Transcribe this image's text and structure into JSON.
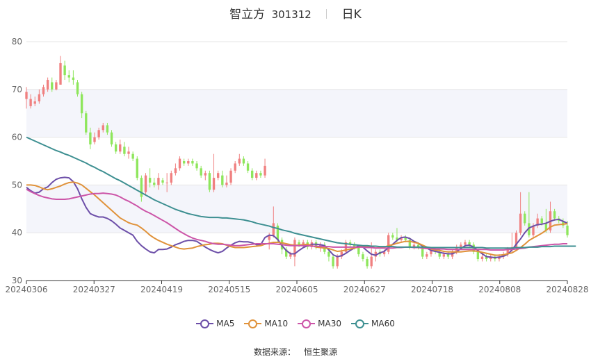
{
  "header": {
    "name": "智立方",
    "code": "301312",
    "period": "日K"
  },
  "source": {
    "label": "数据来源：",
    "value": "恒生聚源"
  },
  "chart_data": {
    "type": "candlestick",
    "ylim": [
      30,
      80
    ],
    "y_ticks": [
      30,
      40,
      50,
      60,
      70,
      80
    ],
    "x_ticks": [
      "20240306",
      "20240327",
      "20240419",
      "20240515",
      "20240605",
      "20240627",
      "20240718",
      "20240808",
      "20240828"
    ],
    "grid": "horizontal bands",
    "legend_position": "bottom",
    "colors": {
      "up": "#f08080",
      "down": "#8ee65c",
      "band": "#f4f5fb"
    },
    "candles_ohlc": [
      [
        68,
        69.5,
        66,
        70.5
      ],
      [
        66.5,
        68,
        66,
        69
      ],
      [
        67,
        67.5,
        66.5,
        68.5
      ],
      [
        67.5,
        69,
        67,
        70
      ],
      [
        69,
        70.5,
        68.5,
        71
      ],
      [
        70,
        72,
        69.5,
        72.5
      ],
      [
        71.5,
        70,
        69.5,
        72.5
      ],
      [
        70,
        71.5,
        69.8,
        72
      ],
      [
        71,
        75.5,
        71,
        77
      ],
      [
        75,
        73,
        72,
        76
      ],
      [
        73,
        72.5,
        71.5,
        74
      ],
      [
        72.5,
        72,
        71,
        74
      ],
      [
        71.5,
        69,
        68.5,
        72
      ],
      [
        69,
        65,
        64,
        69.5
      ],
      [
        65,
        61,
        60.5,
        65.5
      ],
      [
        61,
        58.5,
        57.5,
        62
      ],
      [
        59,
        60,
        58.5,
        61
      ],
      [
        60,
        61.5,
        59.5,
        62
      ],
      [
        61.5,
        62.5,
        61,
        63
      ],
      [
        62.5,
        61,
        60.5,
        63
      ],
      [
        61,
        58.5,
        58,
        61.5
      ],
      [
        58.5,
        57,
        56.5,
        59
      ],
      [
        57,
        58.5,
        56.5,
        59.5
      ],
      [
        58,
        56.5,
        56,
        59
      ],
      [
        56.5,
        57,
        55.5,
        58
      ],
      [
        56.5,
        55.5,
        55,
        57
      ],
      [
        55.5,
        51.5,
        51,
        56
      ],
      [
        51.5,
        47.5,
        46.5,
        52
      ],
      [
        48.5,
        52,
        48,
        52.5
      ],
      [
        51.5,
        50.5,
        49.5,
        53.5
      ],
      [
        50.5,
        50,
        49.5,
        51.5
      ],
      [
        50,
        51.5,
        49,
        52.5
      ],
      [
        51,
        50.5,
        50,
        51.5
      ],
      [
        50.5,
        50.5,
        48.5,
        52.5
      ],
      [
        50.5,
        52.5,
        50,
        53
      ],
      [
        52.5,
        53.5,
        52,
        54.5
      ],
      [
        53.5,
        55.5,
        53,
        56
      ],
      [
        55,
        54.5,
        54,
        55.5
      ],
      [
        54.5,
        55,
        54,
        55.5
      ],
      [
        55,
        54.5,
        54,
        55.5
      ],
      [
        54.5,
        53.5,
        53,
        55
      ],
      [
        53.5,
        52,
        51.5,
        54
      ],
      [
        52,
        52.5,
        51,
        53
      ],
      [
        52.5,
        49,
        48.5,
        53
      ],
      [
        49,
        51.5,
        48.5,
        56.5
      ],
      [
        51.5,
        52.5,
        51,
        53
      ],
      [
        52,
        50,
        49.5,
        53
      ],
      [
        50,
        50.5,
        49.5,
        52
      ],
      [
        50.5,
        53,
        50,
        53.5
      ],
      [
        53,
        54.5,
        52.5,
        55
      ],
      [
        54.5,
        55.5,
        54,
        56.5
      ],
      [
        55.5,
        54.5,
        54,
        56
      ],
      [
        54.5,
        53,
        52.5,
        55
      ],
      [
        53,
        51.5,
        51,
        53.5
      ],
      [
        51.5,
        52.5,
        51,
        53
      ],
      [
        52.5,
        52,
        51.5,
        53
      ],
      [
        52,
        54,
        51.5,
        55.5
      ],
      [
        38.5,
        39.5,
        36.5,
        40
      ],
      [
        39.5,
        42,
        39,
        45.5
      ],
      [
        41.5,
        38.5,
        38,
        42
      ],
      [
        38.5,
        36.5,
        35.5,
        39
      ],
      [
        36.5,
        35,
        34.5,
        37
      ],
      [
        35,
        35.5,
        34.5,
        36
      ],
      [
        35,
        38.5,
        33,
        39
      ],
      [
        38,
        37.5,
        37,
        38.5
      ],
      [
        37.5,
        38,
        37,
        38.5
      ],
      [
        38,
        37,
        36.5,
        38.5
      ],
      [
        37,
        38,
        36.5,
        38.5
      ],
      [
        38,
        37,
        36.5,
        38.5
      ],
      [
        37,
        37.5,
        36,
        38
      ],
      [
        37.5,
        36,
        35.5,
        38
      ],
      [
        36,
        35,
        34,
        36.5
      ],
      [
        35,
        33,
        32.5,
        35.5
      ],
      [
        33,
        35,
        32.5,
        35.5
      ],
      [
        35,
        36,
        34.5,
        36.5
      ],
      [
        36,
        38,
        35.5,
        38.5
      ],
      [
        38,
        37.5,
        37,
        38.5
      ],
      [
        37.5,
        37,
        36.5,
        38
      ],
      [
        37,
        35.5,
        35,
        37.5
      ],
      [
        35.5,
        34.5,
        34,
        36
      ],
      [
        34.5,
        33,
        32.5,
        35
      ],
      [
        33,
        35,
        32.5,
        38
      ],
      [
        35,
        36,
        34,
        36.5
      ],
      [
        36,
        35.5,
        35,
        36.5
      ],
      [
        35.5,
        36,
        35,
        36.5
      ],
      [
        36,
        39.5,
        35.5,
        40
      ],
      [
        39.5,
        39,
        38.5,
        40
      ],
      [
        39,
        38.5,
        38,
        41
      ],
      [
        38.5,
        39,
        38,
        39.5
      ],
      [
        39,
        38.5,
        38,
        39.5
      ],
      [
        38.5,
        37,
        36.5,
        39
      ],
      [
        37,
        37.5,
        36.5,
        38
      ],
      [
        37.5,
        37,
        36.5,
        38
      ],
      [
        37,
        35,
        34.5,
        37.5
      ],
      [
        35,
        35.5,
        34.5,
        36
      ],
      [
        35.5,
        36.5,
        35,
        37
      ],
      [
        36.5,
        36,
        35.5,
        37
      ],
      [
        36,
        35,
        34.5,
        36.5
      ],
      [
        35,
        35.5,
        34.5,
        36
      ],
      [
        35.5,
        35,
        34.5,
        36
      ],
      [
        35,
        36,
        34.5,
        36.5
      ],
      [
        36,
        37,
        35.5,
        37.5
      ],
      [
        37,
        37.5,
        36.5,
        38
      ],
      [
        37.5,
        38,
        37,
        38.5
      ],
      [
        38,
        37.5,
        37,
        38.5
      ],
      [
        37.5,
        36,
        35.5,
        38
      ],
      [
        36,
        34.5,
        34,
        36.5
      ],
      [
        34.5,
        35,
        34,
        35.5
      ],
      [
        35,
        34.5,
        34,
        35.5
      ],
      [
        34.5,
        35,
        34,
        35.5
      ],
      [
        35,
        34.5,
        34,
        35.5
      ],
      [
        34.5,
        35,
        34,
        35.5
      ],
      [
        35,
        35.5,
        34.5,
        36
      ],
      [
        35.5,
        36.5,
        35,
        37
      ],
      [
        36.5,
        37,
        36,
        40
      ],
      [
        37,
        40,
        36.5,
        40.5
      ],
      [
        40,
        44,
        39.5,
        48.5
      ],
      [
        44,
        42,
        41.5,
        44.5
      ],
      [
        42,
        39.5,
        39,
        48.5
      ],
      [
        39.5,
        41.5,
        39,
        42
      ],
      [
        41.5,
        43,
        41,
        44
      ],
      [
        43,
        42,
        41.5,
        43.5
      ],
      [
        42,
        40.5,
        40,
        45
      ],
      [
        40.5,
        44.5,
        40,
        46.5
      ],
      [
        44.5,
        43,
        42.5,
        45
      ],
      [
        43,
        42.5,
        42,
        43.5
      ],
      [
        42.5,
        41.5,
        41,
        43
      ],
      [
        41.5,
        39.5,
        39,
        42.5
      ]
    ],
    "series": [
      {
        "name": "MA5",
        "color": "#6c4ea8",
        "values": [
          49.5,
          48.8,
          48.3,
          48.5,
          49.2,
          49.6,
          50.5,
          51.2,
          51.5,
          51.6,
          51.5,
          50.7,
          49.2,
          47.1,
          45.3,
          44.0,
          43.6,
          43.3,
          43.3,
          43.0,
          42.5,
          41.8,
          41.0,
          40.5,
          40.0,
          39.5,
          38.2,
          37.3,
          36.6,
          36.0,
          35.8,
          36.5,
          36.5,
          36.6,
          37.0,
          37.5,
          37.8,
          38.2,
          38.4,
          38.4,
          38.2,
          37.6,
          37.0,
          36.5,
          36.1,
          35.8,
          36.1,
          36.8,
          37.4,
          37.9,
          38.2,
          38.1,
          38.1,
          37.9,
          37.5,
          37.5,
          39.0,
          39.5,
          39.4,
          38.6,
          37.3,
          36.3,
          35.6,
          35.6,
          36.3,
          36.9,
          37.3,
          37.6,
          37.6,
          37.5,
          37.3,
          36.4,
          35.4,
          35.0,
          35.2,
          35.7,
          36.3,
          36.8,
          37.3,
          37.0,
          36.2,
          35.5,
          35.3,
          35.8,
          36.1,
          36.9,
          37.6,
          38.4,
          39.0,
          39.1,
          38.8,
          38.2,
          37.8,
          37.2,
          36.8,
          36.3,
          36.1,
          35.9,
          35.7,
          35.6,
          35.6,
          36.0,
          36.7,
          37.3,
          37.4,
          37.0,
          36.3,
          35.6,
          35.0,
          34.9,
          34.8,
          34.9,
          35.1,
          35.5,
          36.4,
          37.6,
          38.7,
          40.0,
          41.0,
          41.4,
          41.7,
          41.8,
          42.0,
          42.4,
          42.7,
          42.8,
          42.4,
          42.0
        ]
      },
      {
        "name": "MA10",
        "color": "#e0923a",
        "values": [
          50.0,
          50.0,
          49.9,
          49.6,
          49.2,
          49.0,
          49.2,
          49.5,
          49.8,
          50.2,
          50.5,
          50.6,
          50.4,
          50.0,
          49.3,
          48.6,
          47.9,
          47.1,
          46.3,
          45.5,
          44.7,
          43.9,
          43.1,
          42.6,
          42.1,
          41.8,
          41.6,
          41.0,
          40.3,
          39.5,
          38.9,
          38.4,
          38.0,
          37.6,
          37.3,
          37.0,
          36.7,
          36.6,
          36.7,
          36.8,
          37.1,
          37.3,
          37.5,
          37.6,
          37.8,
          37.8,
          37.7,
          37.4,
          37.1,
          36.9,
          36.9,
          36.9,
          37.0,
          37.1,
          37.2,
          37.3,
          37.6,
          37.8,
          38.0,
          38.0,
          37.9,
          37.7,
          37.5,
          37.4,
          37.4,
          37.5,
          37.6,
          37.3,
          37.0,
          36.9,
          36.8,
          36.7,
          36.4,
          36.1,
          36.2,
          36.4,
          36.6,
          36.8,
          37.0,
          37.2,
          37.1,
          37.0,
          36.8,
          36.9,
          37.0,
          37.3,
          37.5,
          37.8,
          38.0,
          38.2,
          38.2,
          38.0,
          37.8,
          37.4,
          37.0,
          36.6,
          36.4,
          36.3,
          36.1,
          36.0,
          36.0,
          36.0,
          36.0,
          36.1,
          36.2,
          36.2,
          36.1,
          35.9,
          35.7,
          35.5,
          35.3,
          35.3,
          35.4,
          35.6,
          35.8,
          36.3,
          36.9,
          37.6,
          38.4,
          38.9,
          39.4,
          39.9,
          40.5,
          41.2,
          41.6,
          41.7,
          41.8,
          41.9
        ]
      },
      {
        "name": "MA30",
        "color": "#cc55a8",
        "values": [
          49.1,
          48.6,
          48.2,
          47.8,
          47.5,
          47.3,
          47.1,
          47.0,
          47.0,
          47.0,
          47.1,
          47.3,
          47.5,
          47.7,
          47.9,
          48.1,
          48.2,
          48.2,
          48.3,
          48.2,
          48.1,
          47.9,
          47.5,
          47.0,
          46.6,
          46.1,
          45.6,
          45.0,
          44.5,
          44.1,
          43.6,
          43.1,
          42.6,
          42.1,
          41.5,
          40.9,
          40.3,
          39.8,
          39.3,
          38.9,
          38.6,
          38.4,
          38.2,
          37.9,
          37.7,
          37.6,
          37.6,
          37.5,
          37.4,
          37.3,
          37.3,
          37.4,
          37.5,
          37.6,
          37.7,
          37.7,
          37.7,
          37.7,
          37.7,
          37.6,
          37.5,
          37.4,
          37.3,
          37.3,
          37.3,
          37.3,
          37.3,
          37.2,
          37.2,
          37.1,
          37.1,
          37.1,
          37.0,
          37.0,
          37.0,
          37.0,
          37.0,
          37.0,
          37.0,
          37.0,
          36.9,
          36.9,
          36.8,
          36.8,
          36.8,
          36.8,
          36.8,
          36.9,
          36.9,
          37.0,
          37.0,
          36.9,
          36.9,
          36.8,
          36.7,
          36.7,
          36.6,
          36.6,
          36.6,
          36.5,
          36.5,
          36.5,
          36.5,
          36.5,
          36.5,
          36.5,
          36.5,
          36.5,
          36.5,
          36.4,
          36.4,
          36.4,
          36.4,
          36.5,
          36.5,
          36.6,
          36.7,
          36.8,
          37.0,
          37.1,
          37.2,
          37.3,
          37.4,
          37.5,
          37.6,
          37.6,
          37.7,
          37.7
        ]
      },
      {
        "name": "MA60",
        "color": "#3d8f91",
        "values": [
          60.0,
          59.6,
          59.2,
          58.8,
          58.4,
          58.0,
          57.6,
          57.2,
          56.9,
          56.5,
          56.2,
          55.8,
          55.4,
          55.0,
          54.6,
          54.1,
          53.7,
          53.2,
          52.8,
          52.3,
          51.8,
          51.3,
          50.9,
          50.4,
          49.9,
          49.4,
          48.9,
          48.4,
          47.9,
          47.4,
          46.9,
          46.5,
          46.1,
          45.7,
          45.3,
          44.9,
          44.6,
          44.3,
          44.0,
          43.8,
          43.6,
          43.4,
          43.3,
          43.2,
          43.2,
          43.2,
          43.1,
          43.1,
          43.0,
          42.9,
          42.8,
          42.7,
          42.5,
          42.3,
          42.0,
          41.8,
          41.6,
          41.4,
          41.1,
          40.9,
          40.6,
          40.4,
          40.2,
          39.9,
          39.7,
          39.5,
          39.3,
          39.1,
          38.9,
          38.7,
          38.5,
          38.3,
          38.1,
          37.9,
          37.8,
          37.7,
          37.6,
          37.5,
          37.4,
          37.3,
          37.3,
          37.2,
          37.2,
          37.1,
          37.1,
          37.1,
          37.1,
          37.0,
          37.0,
          37.0,
          37.0,
          37.0,
          37.0,
          37.0,
          37.0,
          36.9,
          36.9,
          36.9,
          36.9,
          36.9,
          36.9,
          36.9,
          36.9,
          36.9,
          36.9,
          36.9,
          36.9,
          36.9,
          36.8,
          36.8,
          36.8,
          36.8,
          36.8,
          36.8,
          36.8,
          36.9,
          36.9,
          36.9,
          37.0,
          37.0,
          37.0,
          37.1,
          37.1,
          37.1,
          37.2,
          37.2,
          37.2,
          37.2,
          37.2,
          37.2
        ]
      }
    ]
  }
}
